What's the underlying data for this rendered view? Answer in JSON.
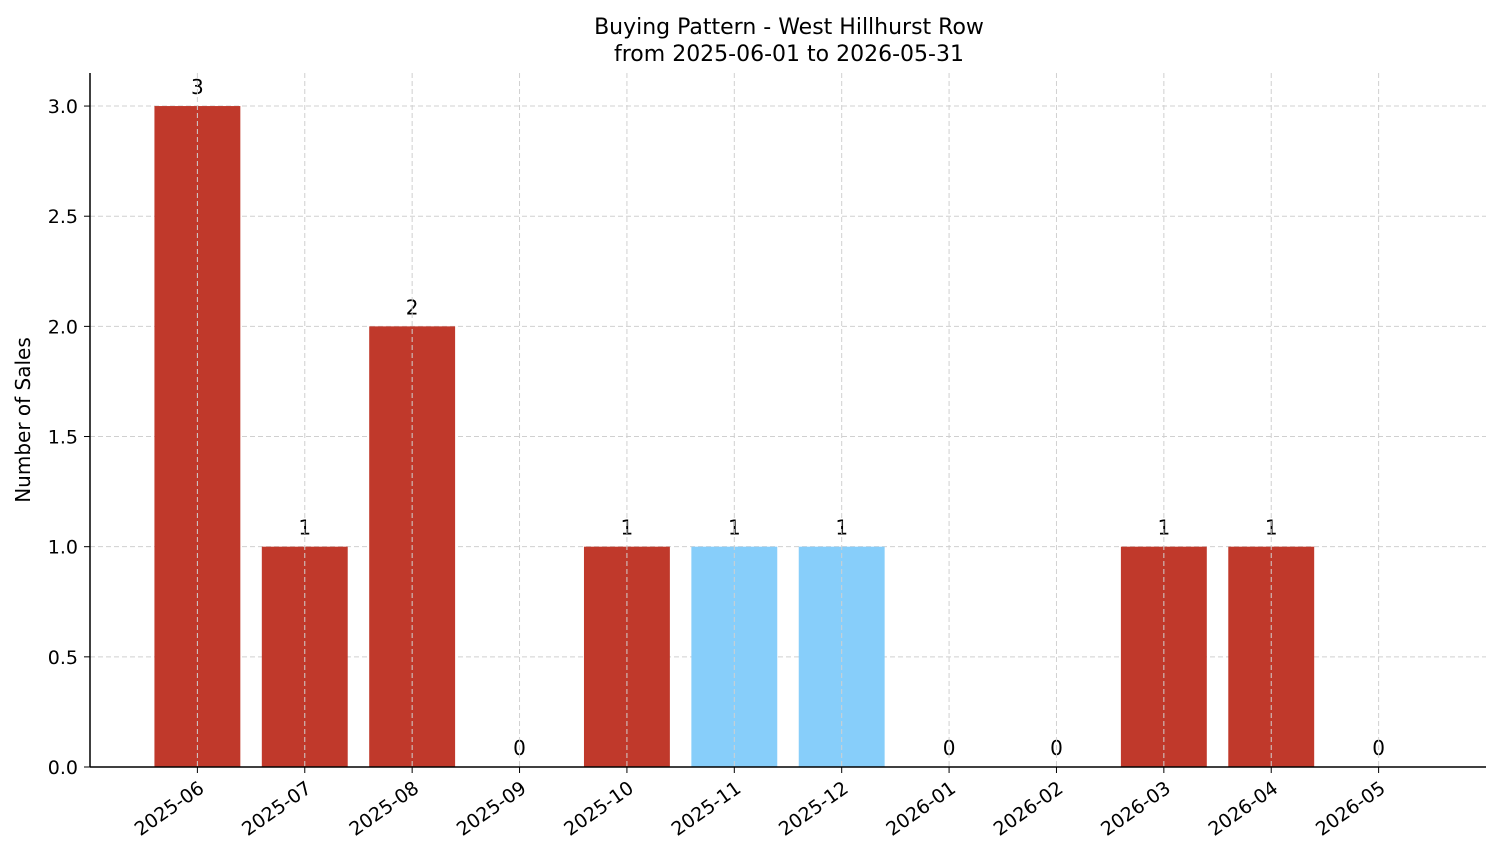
{
  "chart_data": {
    "type": "bar",
    "title": "Buying Pattern - West Hillhurst Row",
    "subtitle": "from 2025-06-01 to 2026-05-31",
    "y_label": "Number of Sales",
    "categories": [
      "2025-06",
      "2025-07",
      "2025-08",
      "2025-09",
      "2025-10",
      "2025-11",
      "2025-12",
      "2026-01",
      "2026-02",
      "2026-03",
      "2026-04",
      "2026-05"
    ],
    "values": [
      3,
      1,
      2,
      0,
      1,
      1,
      1,
      0,
      0,
      1,
      1,
      0
    ],
    "colors": [
      "#c0392b",
      "#c0392b",
      "#c0392b",
      "#c0392b",
      "#c0392b",
      "#87cefa",
      "#87cefa",
      "#c0392b",
      "#c0392b",
      "#c0392b",
      "#c0392b",
      "#c0392b"
    ],
    "ylim": [
      0,
      3.15
    ],
    "yticks": [
      {
        "value": 0,
        "label": "0.0"
      },
      {
        "value": 0.5,
        "label": "0.5"
      },
      {
        "value": 1,
        "label": "1.0"
      },
      {
        "value": 1.5,
        "label": "1.5"
      },
      {
        "value": 2,
        "label": "2.0"
      },
      {
        "value": 2.5,
        "label": "2.5"
      },
      {
        "value": 3,
        "label": "3.0"
      }
    ],
    "grid": true
  }
}
